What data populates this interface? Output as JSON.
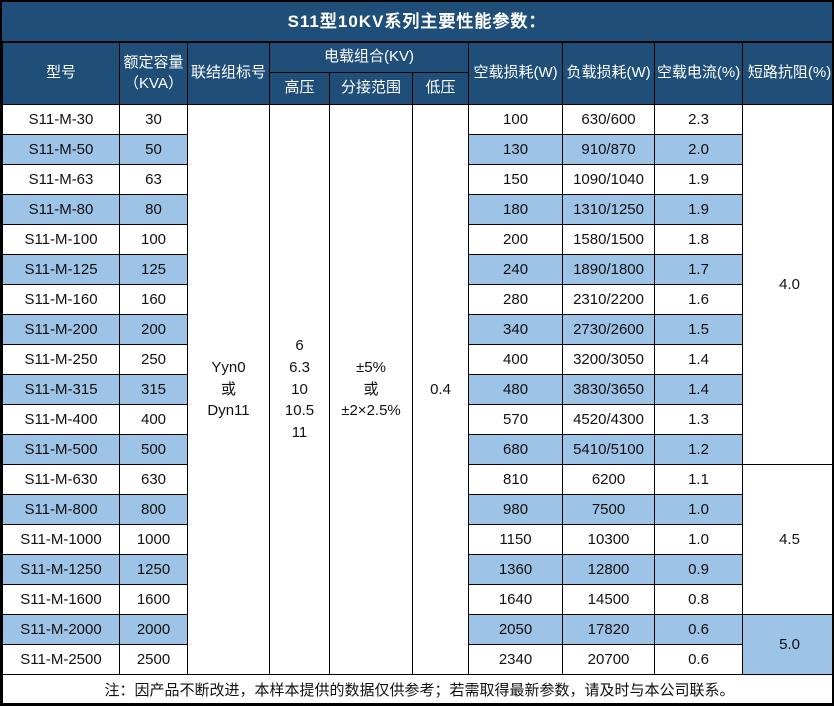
{
  "title": "S11型10KV系列主要性能参数：",
  "colors": {
    "header_bg": "#1F4E79",
    "stripe_bg": "#9DC3E6",
    "border": "#000000",
    "header_text": "#ffffff",
    "body_text": "#111111"
  },
  "header": {
    "model": "型号",
    "capacity": "额定容量\n（KVA）",
    "vector_group": "联结组标号",
    "load_combo": "电载组合(KV)",
    "hv": "高压",
    "tap_range": "分接范围",
    "lv": "低压",
    "no_load_loss": "空载损耗(W)",
    "load_loss": "负载损耗(W)",
    "no_load_current": "空载电流(%)",
    "impedance": "短路抗阻(%)"
  },
  "merged": {
    "vector_group": [
      "Yyn0",
      "或",
      "Dyn11"
    ],
    "hv": [
      "6",
      "6.3",
      "10",
      "10.5",
      "11"
    ],
    "tap_range": [
      "±5%",
      "或",
      "±2×2.5%"
    ],
    "lv": "0.4"
  },
  "rows": [
    {
      "model": "S11-M-30",
      "capacity": "30",
      "no_load_loss": "100",
      "load_loss": "630/600",
      "no_load_current": "2.3"
    },
    {
      "model": "S11-M-50",
      "capacity": "50",
      "no_load_loss": "130",
      "load_loss": "910/870",
      "no_load_current": "2.0"
    },
    {
      "model": "S11-M-63",
      "capacity": "63",
      "no_load_loss": "150",
      "load_loss": "1090/1040",
      "no_load_current": "1.9"
    },
    {
      "model": "S11-M-80",
      "capacity": "80",
      "no_load_loss": "180",
      "load_loss": "1310/1250",
      "no_load_current": "1.9"
    },
    {
      "model": "S11-M-100",
      "capacity": "100",
      "no_load_loss": "200",
      "load_loss": "1580/1500",
      "no_load_current": "1.8"
    },
    {
      "model": "S11-M-125",
      "capacity": "125",
      "no_load_loss": "240",
      "load_loss": "1890/1800",
      "no_load_current": "1.7"
    },
    {
      "model": "S11-M-160",
      "capacity": "160",
      "no_load_loss": "280",
      "load_loss": "2310/2200",
      "no_load_current": "1.6"
    },
    {
      "model": "S11-M-200",
      "capacity": "200",
      "no_load_loss": "340",
      "load_loss": "2730/2600",
      "no_load_current": "1.5"
    },
    {
      "model": "S11-M-250",
      "capacity": "250",
      "no_load_loss": "400",
      "load_loss": "3200/3050",
      "no_load_current": "1.4"
    },
    {
      "model": "S11-M-315",
      "capacity": "315",
      "no_load_loss": "480",
      "load_loss": "3830/3650",
      "no_load_current": "1.4"
    },
    {
      "model": "S11-M-400",
      "capacity": "400",
      "no_load_loss": "570",
      "load_loss": "4520/4300",
      "no_load_current": "1.3"
    },
    {
      "model": "S11-M-500",
      "capacity": "500",
      "no_load_loss": "680",
      "load_loss": "5410/5100",
      "no_load_current": "1.2"
    },
    {
      "model": "S11-M-630",
      "capacity": "630",
      "no_load_loss": "810",
      "load_loss": "6200",
      "no_load_current": "1.1"
    },
    {
      "model": "S11-M-800",
      "capacity": "800",
      "no_load_loss": "980",
      "load_loss": "7500",
      "no_load_current": "1.0"
    },
    {
      "model": "S11-M-1000",
      "capacity": "1000",
      "no_load_loss": "1150",
      "load_loss": "10300",
      "no_load_current": "1.0"
    },
    {
      "model": "S11-M-1250",
      "capacity": "1250",
      "no_load_loss": "1360",
      "load_loss": "12800",
      "no_load_current": "0.9"
    },
    {
      "model": "S11-M-1600",
      "capacity": "1600",
      "no_load_loss": "1640",
      "load_loss": "14500",
      "no_load_current": "0.8"
    },
    {
      "model": "S11-M-2000",
      "capacity": "2000",
      "no_load_loss": "2050",
      "load_loss": "17820",
      "no_load_current": "0.6"
    },
    {
      "model": "S11-M-2500",
      "capacity": "2500",
      "no_load_loss": "2340",
      "load_loss": "20700",
      "no_load_current": "0.6"
    }
  ],
  "impedance_groups": [
    {
      "value": "4.0",
      "span": 12
    },
    {
      "value": "4.5",
      "span": 5
    },
    {
      "value": "5.0",
      "span": 2
    }
  ],
  "footnote": "注：因产品不断改进，本样本提供的数据仅供参考；若需取得最新参数，请及时与本公司联系。"
}
